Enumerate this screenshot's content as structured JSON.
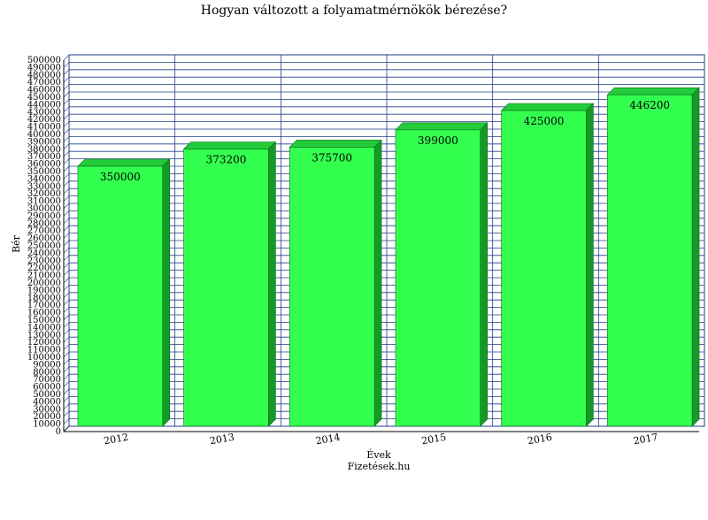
{
  "chart_data": {
    "type": "bar",
    "title": "Hogyan változott a folyamatmérnökök bérezése?",
    "xlabel": "Évek",
    "ylabel": "Bér",
    "source": "Fizetések.hu",
    "categories": [
      "2012",
      "2013",
      "2014",
      "2015",
      "2016",
      "2017"
    ],
    "values": [
      350000,
      373200,
      375700,
      399000,
      425000,
      446200
    ],
    "ylim": [
      0,
      500000
    ],
    "ytick_step": 10000,
    "grid": true,
    "bar_color": "#33ff4f",
    "bar_side_color": "#159a27",
    "bar_top_color": "#22cc3a",
    "grid_color": "#1f3f8a"
  }
}
